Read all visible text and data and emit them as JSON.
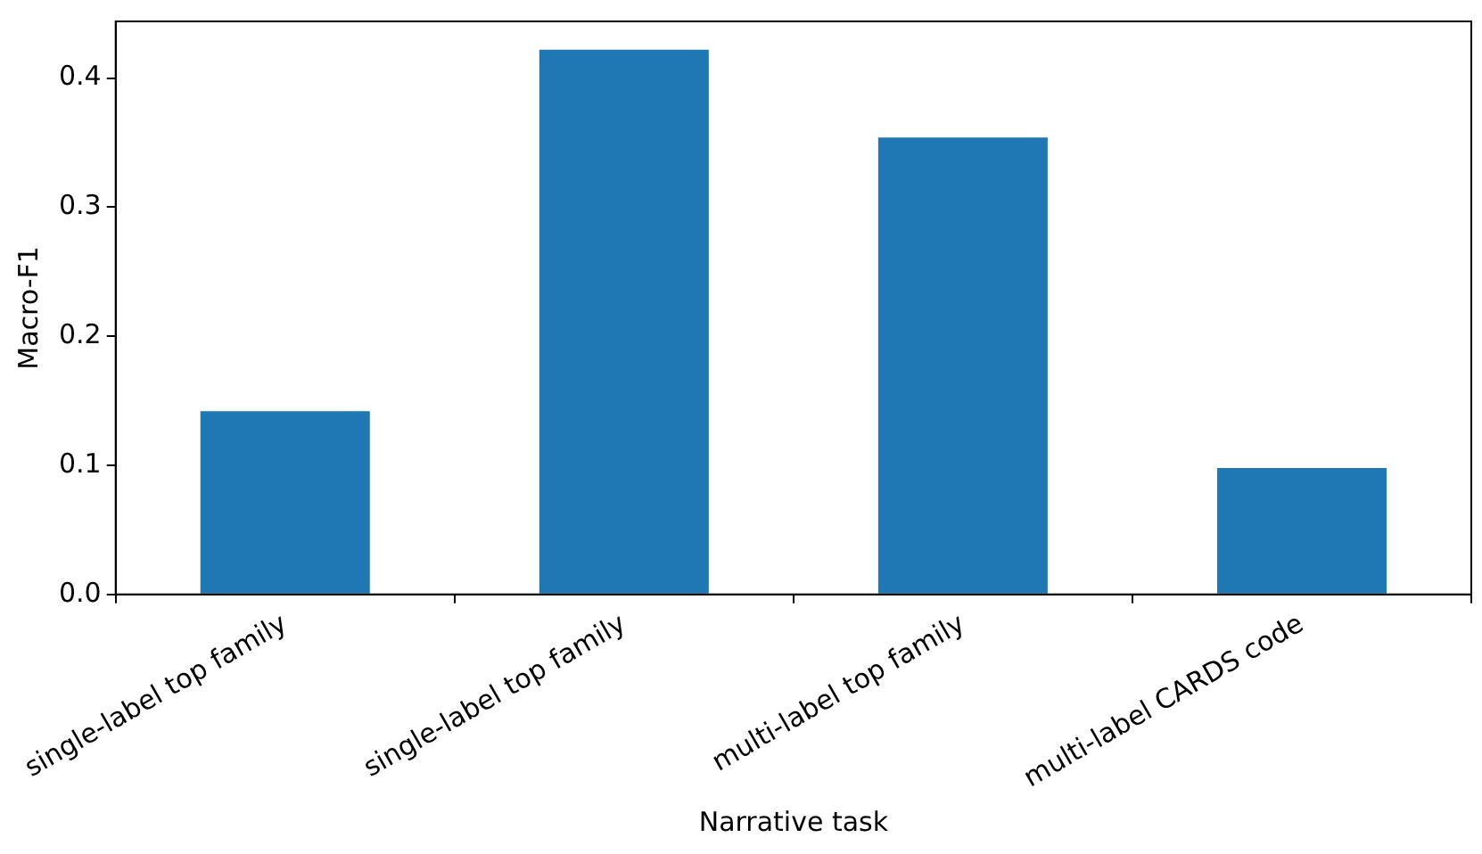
{
  "chart_data": {
    "type": "bar",
    "xlabel": "Narrative task",
    "ylabel": "Macro-F1",
    "categories": [
      "single-label top family",
      "single-label top family",
      "multi-label top family",
      "multi-label CARDS code"
    ],
    "values": [
      0.142,
      0.422,
      0.354,
      0.098
    ],
    "color": "#1f77b4",
    "ylim": [
      0,
      0.444
    ],
    "yticks": [
      {
        "value": 0,
        "label": "0.0"
      },
      {
        "value": 0.1,
        "label": "0.1"
      },
      {
        "value": 0.2,
        "label": "0.2"
      },
      {
        "value": 0.3,
        "label": "0.3"
      },
      {
        "value": 0.4,
        "label": "0.4"
      }
    ],
    "grid": false,
    "legend": false
  }
}
